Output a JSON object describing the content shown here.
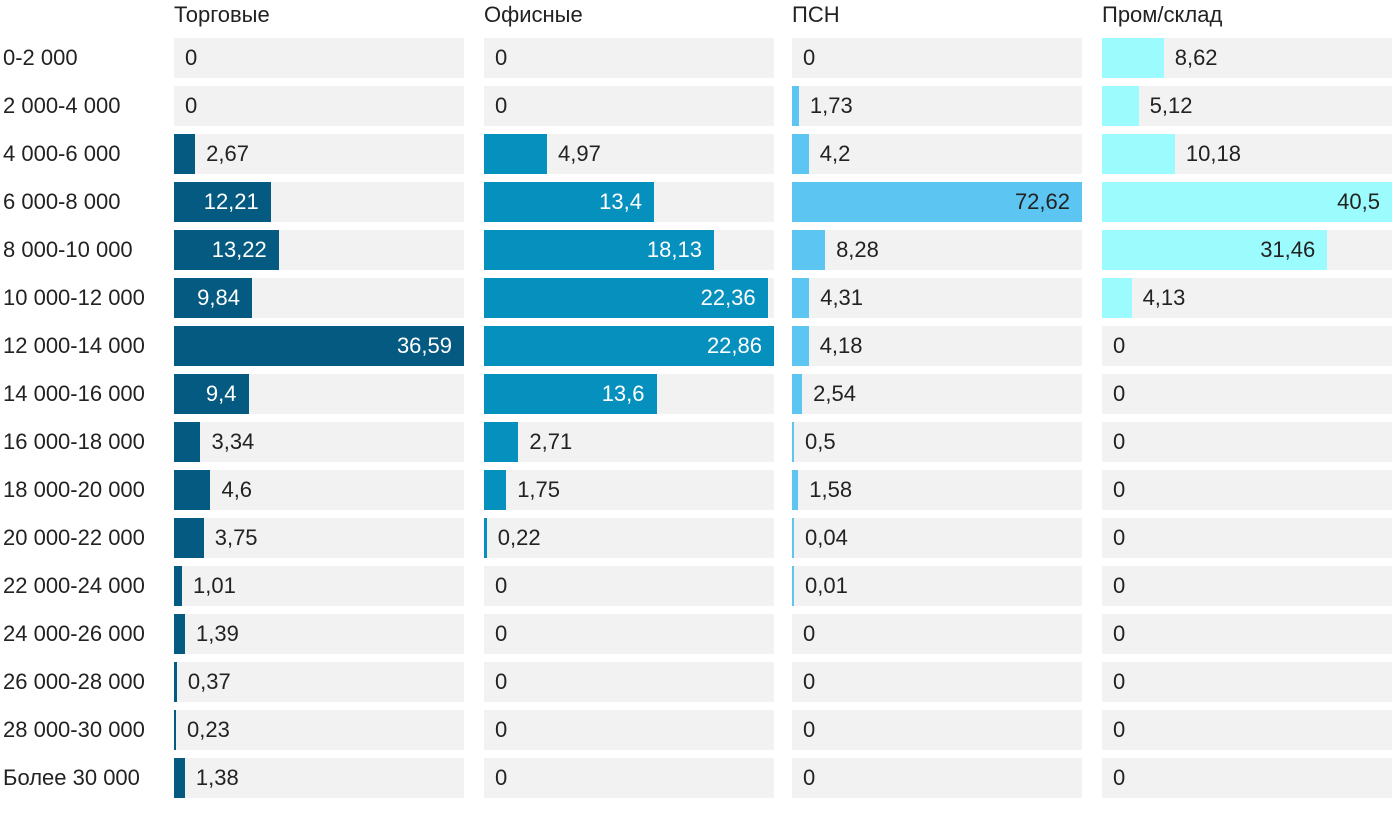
{
  "chart_data": {
    "type": "bar",
    "orientation": "horizontal",
    "layout": "small-multiples",
    "categories": [
      "0-2 000",
      "2 000-4 000",
      "4 000-6 000",
      "6 000-8 000",
      "8 000-10 000",
      "10 000-12 000",
      "12 000-14 000",
      "14 000-16 000",
      "16 000-18 000",
      "18 000-20 000",
      "20 000-22 000",
      "22 000-24 000",
      "24 000-26 000",
      "26 000-28 000",
      "28 000-30 000",
      "Более 30 000"
    ],
    "series": [
      {
        "name": "Торговые",
        "color": "#045a80",
        "label_dark": false,
        "values": [
          0,
          0,
          2.67,
          12.21,
          13.22,
          9.84,
          36.59,
          9.4,
          3.34,
          4.6,
          3.75,
          1.01,
          1.39,
          0.37,
          0.23,
          1.38
        ],
        "labels": [
          "0",
          "0",
          "2,67",
          "12,21",
          "13,22",
          "9,84",
          "36,59",
          "9,4",
          "3,34",
          "4,6",
          "3,75",
          "1,01",
          "1,39",
          "0,37",
          "0,23",
          "1,38"
        ]
      },
      {
        "name": "Офисные",
        "color": "#0690be",
        "label_dark": false,
        "values": [
          0,
          0,
          4.97,
          13.4,
          18.13,
          22.36,
          22.86,
          13.6,
          2.71,
          1.75,
          0.22,
          0,
          0,
          0,
          0,
          0
        ],
        "labels": [
          "0",
          "0",
          "4,97",
          "13,4",
          "18,13",
          "22,36",
          "22,86",
          "13,6",
          "2,71",
          "1,75",
          "0,22",
          "0",
          "0",
          "0",
          "0",
          "0"
        ]
      },
      {
        "name": "ПСН",
        "color": "#5cc5f2",
        "label_dark": true,
        "values": [
          0,
          1.73,
          4.2,
          72.62,
          8.28,
          4.31,
          4.18,
          2.54,
          0.5,
          1.58,
          0.04,
          0.01,
          0,
          0,
          0,
          0
        ],
        "labels": [
          "0",
          "1,73",
          "4,2",
          "72,62",
          "8,28",
          "4,31",
          "4,18",
          "2,54",
          "0,5",
          "1,58",
          "0,04",
          "0,01",
          "0",
          "0",
          "0",
          "0"
        ]
      },
      {
        "name": "Пром/склад",
        "color": "#9cfcfd",
        "label_dark": true,
        "values": [
          8.62,
          5.12,
          10.18,
          40.5,
          31.46,
          4.13,
          0,
          0,
          0,
          0,
          0,
          0,
          0,
          0,
          0,
          0
        ],
        "labels": [
          "8,62",
          "5,12",
          "10,18",
          "40,5",
          "31,46",
          "4,13",
          "0",
          "0",
          "0",
          "0",
          "0",
          "0",
          "0",
          "0",
          "0",
          "0"
        ]
      }
    ],
    "title": "",
    "xlabel": "",
    "ylabel": "",
    "grid": false,
    "legend": "none"
  }
}
